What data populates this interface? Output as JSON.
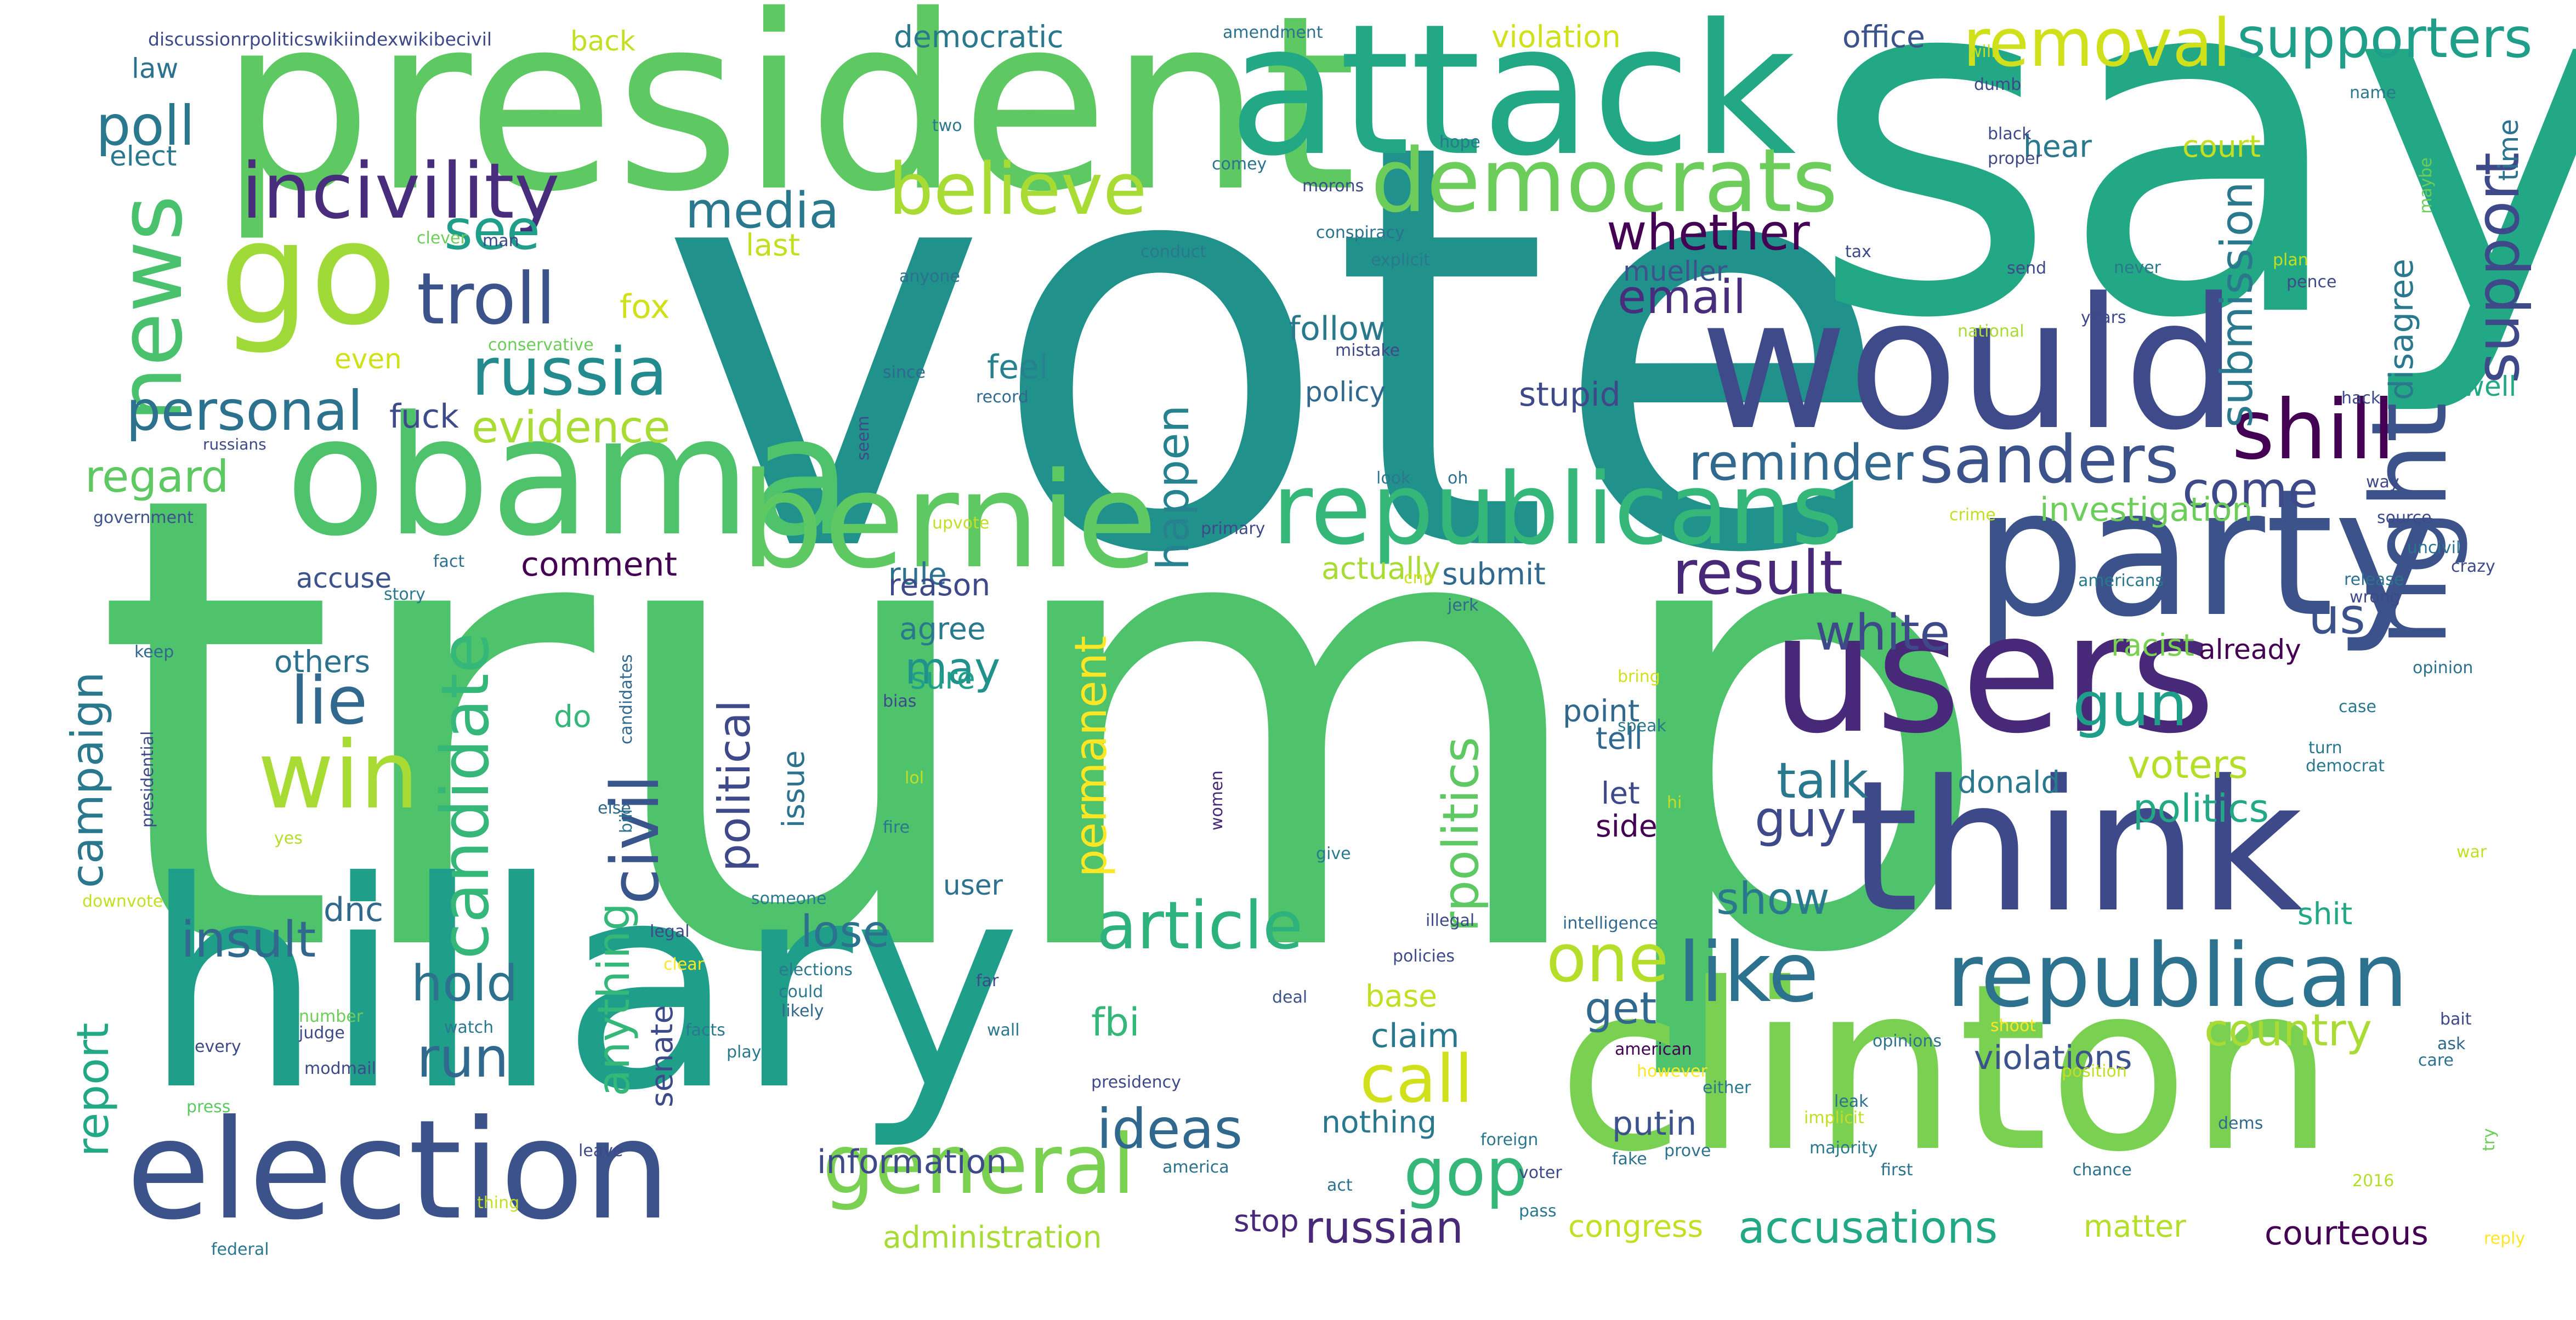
{
  "cloud": {
    "words": [
      {
        "text": "trump",
        "color": "#4ec36b"
      },
      {
        "text": "vote",
        "color": "#21918c"
      },
      {
        "text": "say",
        "color": "#22a884"
      },
      {
        "text": "president",
        "color": "#5ec962"
      },
      {
        "text": "hillary",
        "color": "#1f9e89"
      },
      {
        "text": "clinton",
        "color": "#7ad151"
      },
      {
        "text": "attack",
        "color": "#22a884"
      },
      {
        "text": "would",
        "color": "#3e4a89"
      },
      {
        "text": "party",
        "color": "#3b528b"
      },
      {
        "text": "users",
        "color": "#482878"
      },
      {
        "text": "think",
        "color": "#3e4989"
      },
      {
        "text": "obama",
        "color": "#4ec36b"
      },
      {
        "text": "bernie",
        "color": "#5ec962"
      },
      {
        "text": "election",
        "color": "#3b528b"
      },
      {
        "text": "go",
        "color": "#a0da39"
      },
      {
        "text": "republicans",
        "color": "#35b779"
      },
      {
        "text": "republican",
        "color": "#2c728e"
      },
      {
        "text": "democrats",
        "color": "#6ccd5a"
      },
      {
        "text": "right",
        "color": "#3b528b"
      },
      {
        "text": "news",
        "color": "#4ac16d"
      },
      {
        "text": "win",
        "color": "#a8db34"
      },
      {
        "text": "shill",
        "color": "#440154"
      },
      {
        "text": "incivility",
        "color": "#472d7b"
      },
      {
        "text": "troll",
        "color": "#3b528b"
      },
      {
        "text": "general",
        "color": "#7ad151"
      },
      {
        "text": "candidate",
        "color": "#35b779"
      },
      {
        "text": "civil",
        "color": "#39568c"
      },
      {
        "text": "article",
        "color": "#2db27d"
      },
      {
        "text": "like",
        "color": "#2c728e"
      },
      {
        "text": "believe",
        "color": "#a8db34"
      },
      {
        "text": "removal",
        "color": "#d0e11c"
      },
      {
        "text": "supporters",
        "color": "#1f9e89"
      },
      {
        "text": "russia",
        "color": "#238a8d"
      },
      {
        "text": "sanders",
        "color": "#3b528b"
      },
      {
        "text": "support",
        "color": "#3e4989"
      },
      {
        "text": "result",
        "color": "#482878"
      },
      {
        "text": "gop",
        "color": "#35b779"
      },
      {
        "text": "lie",
        "color": "#31688e"
      },
      {
        "text": "personal",
        "color": "#2c728e"
      },
      {
        "text": "call",
        "color": "#d0e11c"
      },
      {
        "text": "one",
        "color": "#b5de2b"
      },
      {
        "text": "ideas",
        "color": "#31688e"
      },
      {
        "text": "media",
        "color": "#2a788e"
      },
      {
        "text": "poll",
        "color": "#2a788e"
      },
      {
        "text": "see",
        "color": "#1f9e89"
      },
      {
        "text": "whether",
        "color": "#440154"
      },
      {
        "text": "email",
        "color": "#472d7b"
      },
      {
        "text": "reminder",
        "color": "#31688e"
      },
      {
        "text": "submission",
        "color": "#2a788e"
      },
      {
        "text": "come",
        "color": "#3e4989"
      },
      {
        "text": "gun",
        "color": "#1f9e89"
      },
      {
        "text": "us",
        "color": "#3b528b"
      },
      {
        "text": "white",
        "color": "#3e4989"
      },
      {
        "text": "campaign",
        "color": "#2a788e"
      },
      {
        "text": "insult",
        "color": "#31688e"
      },
      {
        "text": "hold",
        "color": "#2c728e"
      },
      {
        "text": "run",
        "color": "#31688e"
      },
      {
        "text": "report",
        "color": "#22a884"
      },
      {
        "text": "regard",
        "color": "#5ec962"
      },
      {
        "text": "evidence",
        "color": "#a8db34"
      },
      {
        "text": "political",
        "color": "#3e4989"
      },
      {
        "text": "anything",
        "color": "#35b779"
      },
      {
        "text": "rpolitics",
        "color": "#5ec962"
      },
      {
        "text": "permanent",
        "color": "#fde725"
      },
      {
        "text": "happen",
        "color": "#26828e"
      },
      {
        "text": "talk",
        "color": "#2a788e"
      },
      {
        "text": "guy",
        "color": "#3e4989"
      },
      {
        "text": "show",
        "color": "#2a788e"
      },
      {
        "text": "voters",
        "color": "#b5de2b"
      },
      {
        "text": "politics",
        "color": "#22a884"
      },
      {
        "text": "country",
        "color": "#a8db34"
      },
      {
        "text": "get",
        "color": "#31688e"
      },
      {
        "text": "lose",
        "color": "#2c728e"
      },
      {
        "text": "may",
        "color": "#21918c"
      },
      {
        "text": "russian",
        "color": "#482878"
      },
      {
        "text": "accusations",
        "color": "#22a884"
      },
      {
        "text": "courteous",
        "color": "#440154"
      },
      {
        "text": "fbi",
        "color": "#35b779"
      },
      {
        "text": "claim",
        "color": "#2a788e"
      },
      {
        "text": "putin",
        "color": "#3b528b"
      },
      {
        "text": "violations",
        "color": "#3b528b"
      },
      {
        "text": "investigation",
        "color": "#6ccd5a"
      },
      {
        "text": "follow",
        "color": "#2a788e"
      },
      {
        "text": "feel",
        "color": "#26828e"
      },
      {
        "text": "policy",
        "color": "#31688e"
      },
      {
        "text": "stupid",
        "color": "#3e4989"
      },
      {
        "text": "mueller",
        "color": "#3b528b"
      },
      {
        "text": "fuck",
        "color": "#3e4a89"
      },
      {
        "text": "fox",
        "color": "#d0e11c"
      },
      {
        "text": "accuse",
        "color": "#3b528b"
      },
      {
        "text": "comment",
        "color": "#440154"
      },
      {
        "text": "others",
        "color": "#2c728e"
      },
      {
        "text": "rule",
        "color": "#2c728e"
      },
      {
        "text": "reason",
        "color": "#3e4989"
      },
      {
        "text": "agree",
        "color": "#2a788e"
      },
      {
        "text": "sure",
        "color": "#1f9e89"
      },
      {
        "text": "do",
        "color": "#35b779"
      },
      {
        "text": "dnc",
        "color": "#31688e"
      },
      {
        "text": "issue",
        "color": "#2c728e"
      },
      {
        "text": "senate",
        "color": "#3e4989"
      },
      {
        "text": "submit",
        "color": "#31688e"
      },
      {
        "text": "actually",
        "color": "#a8db34"
      },
      {
        "text": "point",
        "color": "#31688e"
      },
      {
        "text": "tell",
        "color": "#31688e"
      },
      {
        "text": "let",
        "color": "#3e4989"
      },
      {
        "text": "side",
        "color": "#440154"
      },
      {
        "text": "donald",
        "color": "#2a788e"
      },
      {
        "text": "racist",
        "color": "#7ad151"
      },
      {
        "text": "already",
        "color": "#440154"
      },
      {
        "text": "shit",
        "color": "#22a884"
      },
      {
        "text": "well",
        "color": "#22a884"
      },
      {
        "text": "time",
        "color": "#2c728e"
      },
      {
        "text": "disagree",
        "color": "#2a788e"
      },
      {
        "text": "court",
        "color": "#c2df23"
      },
      {
        "text": "hear",
        "color": "#2a788e"
      },
      {
        "text": "office",
        "color": "#3b528b"
      },
      {
        "text": "violation",
        "color": "#d0e11c"
      },
      {
        "text": "democratic",
        "color": "#2a788e"
      },
      {
        "text": "last",
        "color": "#c2df23"
      },
      {
        "text": "even",
        "color": "#d0e11c"
      },
      {
        "text": "law",
        "color": "#2c728e"
      },
      {
        "text": "elect",
        "color": "#2a788e"
      },
      {
        "text": "back",
        "color": "#c2df23"
      },
      {
        "text": "information",
        "color": "#3e4989"
      },
      {
        "text": "administration",
        "color": "#a8db34"
      },
      {
        "text": "stop",
        "color": "#482878"
      },
      {
        "text": "congress",
        "color": "#c2df23"
      },
      {
        "text": "matter",
        "color": "#b5de2b"
      },
      {
        "text": "nothing",
        "color": "#2a788e"
      },
      {
        "text": "base",
        "color": "#c2df23"
      },
      {
        "text": "user",
        "color": "#2c728e"
      },
      {
        "text": "discussionrpoliticswikiindexwikibecivil",
        "color": "#3e4989"
      },
      {
        "text": "amendment",
        "color": "#2c728e"
      },
      {
        "text": "conservative",
        "color": "#6ccd5a"
      },
      {
        "text": "russians",
        "color": "#3e4989"
      },
      {
        "text": "government",
        "color": "#3b528b"
      },
      {
        "text": "presidential",
        "color": "#3e4989"
      },
      {
        "text": "candidates",
        "color": "#31688e"
      },
      {
        "text": "bill",
        "color": "#2c728e"
      },
      {
        "text": "upvote",
        "color": "#c2df23"
      },
      {
        "text": "downvote",
        "color": "#c2df23"
      },
      {
        "text": "yes",
        "color": "#b5de2b"
      },
      {
        "text": "keep",
        "color": "#31688e"
      },
      {
        "text": "fact",
        "color": "#2c728e"
      },
      {
        "text": "story",
        "color": "#2a788e"
      },
      {
        "text": "man",
        "color": "#3e4989"
      },
      {
        "text": "clever",
        "color": "#6ccd5a"
      },
      {
        "text": "conduct",
        "color": "#2a788e"
      },
      {
        "text": "anyone",
        "color": "#2c728e"
      },
      {
        "text": "since",
        "color": "#31688e"
      },
      {
        "text": "record",
        "color": "#31688e"
      },
      {
        "text": "seem",
        "color": "#3e4989"
      },
      {
        "text": "look",
        "color": "#2a788e"
      },
      {
        "text": "oh",
        "color": "#2c728e"
      },
      {
        "text": "primary",
        "color": "#3e4989"
      },
      {
        "text": "cnn",
        "color": "#d0e11c"
      },
      {
        "text": "jerk",
        "color": "#31688e"
      },
      {
        "text": "bias",
        "color": "#3e4989"
      },
      {
        "text": "lol",
        "color": "#c2df23"
      },
      {
        "text": "fire",
        "color": "#2a788e"
      },
      {
        "text": "else",
        "color": "#31688e"
      },
      {
        "text": "women",
        "color": "#482878"
      },
      {
        "text": "give",
        "color": "#2a788e"
      },
      {
        "text": "bring",
        "color": "#d0e11c"
      },
      {
        "text": "speak",
        "color": "#2a788e"
      },
      {
        "text": "hi",
        "color": "#c2df23"
      },
      {
        "text": "illegal",
        "color": "#3e4989"
      },
      {
        "text": "intelligence",
        "color": "#31688e"
      },
      {
        "text": "someone",
        "color": "#2a788e"
      },
      {
        "text": "legal",
        "color": "#3e4989"
      },
      {
        "text": "clear",
        "color": "#fde725"
      },
      {
        "text": "elections",
        "color": "#2a788e"
      },
      {
        "text": "could",
        "color": "#2a788e"
      },
      {
        "text": "likely",
        "color": "#31688e"
      },
      {
        "text": "far",
        "color": "#3e4989"
      },
      {
        "text": "deal",
        "color": "#3b528b"
      },
      {
        "text": "wall",
        "color": "#2a788e"
      },
      {
        "text": "facts",
        "color": "#2a788e"
      },
      {
        "text": "play",
        "color": "#2a788e"
      },
      {
        "text": "policies",
        "color": "#3e4989"
      },
      {
        "text": "presidency",
        "color": "#3e4989"
      },
      {
        "text": "number",
        "color": "#6ccd5a"
      },
      {
        "text": "judge",
        "color": "#3e4989"
      },
      {
        "text": "every",
        "color": "#3e4989"
      },
      {
        "text": "modmail",
        "color": "#3e4989"
      },
      {
        "text": "press",
        "color": "#5ec962"
      },
      {
        "text": "watch",
        "color": "#2a788e"
      },
      {
        "text": "leave",
        "color": "#3e4989"
      },
      {
        "text": "thing",
        "color": "#c2df23"
      },
      {
        "text": "federal",
        "color": "#2a788e"
      },
      {
        "text": "america",
        "color": "#2c728e"
      },
      {
        "text": "act",
        "color": "#2c728e"
      },
      {
        "text": "foreign",
        "color": "#2a788e"
      },
      {
        "text": "voter",
        "color": "#3e4989"
      },
      {
        "text": "pass",
        "color": "#2a788e"
      },
      {
        "text": "american",
        "color": "#440154"
      },
      {
        "text": "however",
        "color": "#fde725"
      },
      {
        "text": "either",
        "color": "#2a788e"
      },
      {
        "text": "fake",
        "color": "#2c728e"
      },
      {
        "text": "prove",
        "color": "#2c728e"
      },
      {
        "text": "implicit",
        "color": "#c2df23"
      },
      {
        "text": "majority",
        "color": "#2a788e"
      },
      {
        "text": "first",
        "color": "#2c728e"
      },
      {
        "text": "2016",
        "color": "#b5de2b"
      },
      {
        "text": "leak",
        "color": "#2c728e"
      },
      {
        "text": "opinions",
        "color": "#2c728e"
      },
      {
        "text": "position",
        "color": "#c2df23"
      },
      {
        "text": "shoot",
        "color": "#fde725"
      },
      {
        "text": "dems",
        "color": "#31688e"
      },
      {
        "text": "chance",
        "color": "#2c728e"
      },
      {
        "text": "reply",
        "color": "#fde725"
      },
      {
        "text": "try",
        "color": "#6ccd5a"
      },
      {
        "text": "care",
        "color": "#2c728e"
      },
      {
        "text": "bait",
        "color": "#3e4989"
      },
      {
        "text": "ask",
        "color": "#31688e"
      },
      {
        "text": "war",
        "color": "#c2df23"
      },
      {
        "text": "turn",
        "color": "#2a788e"
      },
      {
        "text": "democrat",
        "color": "#2a788e"
      },
      {
        "text": "case",
        "color": "#2a788e"
      },
      {
        "text": "opinion",
        "color": "#2c728e"
      },
      {
        "text": "crazy",
        "color": "#3e4989"
      },
      {
        "text": "uncivil",
        "color": "#2c728e"
      },
      {
        "text": "source",
        "color": "#3e4989"
      },
      {
        "text": "way",
        "color": "#3e4989"
      },
      {
        "text": "hack",
        "color": "#3e4989"
      },
      {
        "text": "release",
        "color": "#2c728e"
      },
      {
        "text": "wrong",
        "color": "#3e4989"
      },
      {
        "text": "americans",
        "color": "#2a788e"
      },
      {
        "text": "crime",
        "color": "#c2df23"
      },
      {
        "text": "national",
        "color": "#a8db34"
      },
      {
        "text": "send",
        "color": "#3e4989"
      },
      {
        "text": "years",
        "color": "#3e4989"
      },
      {
        "text": "tax",
        "color": "#3e4989"
      },
      {
        "text": "never",
        "color": "#2a788e"
      },
      {
        "text": "plan",
        "color": "#c2df23"
      },
      {
        "text": "pence",
        "color": "#3e4989"
      },
      {
        "text": "maybe",
        "color": "#6ccd5a"
      },
      {
        "text": "name",
        "color": "#2a788e"
      },
      {
        "text": "will",
        "color": "#c2df23"
      },
      {
        "text": "dumb",
        "color": "#3e4989"
      },
      {
        "text": "black",
        "color": "#3e4989"
      },
      {
        "text": "proper",
        "color": "#3e4989"
      },
      {
        "text": "hope",
        "color": "#2a788e"
      },
      {
        "text": "two",
        "color": "#2a788e"
      },
      {
        "text": "comey",
        "color": "#2c728e"
      },
      {
        "text": "morons",
        "color": "#3e4989"
      },
      {
        "text": "conspiracy",
        "color": "#2c728e"
      },
      {
        "text": "explicit",
        "color": "#2a788e"
      },
      {
        "text": "mistake",
        "color": "#3e4989"
      }
    ]
  }
}
